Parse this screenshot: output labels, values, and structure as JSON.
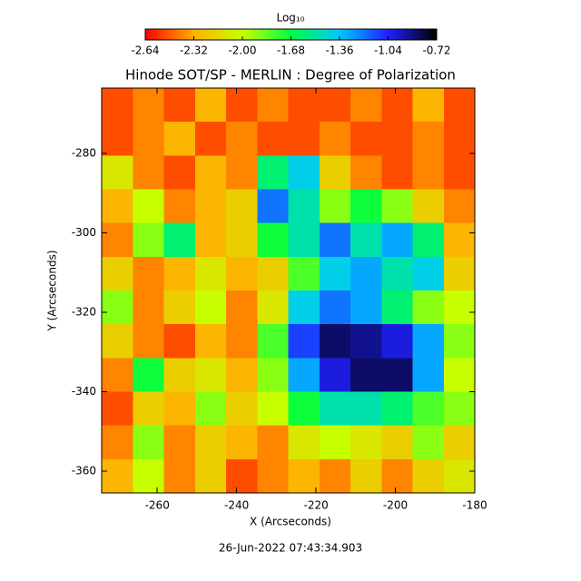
{
  "chart_data": {
    "type": "heatmap",
    "title": "Hinode SOT/SP - MERLIN : Degree of Polarization",
    "xlabel": "X (Arcseconds)",
    "ylabel": "Y (Arcseconds)",
    "footer": "26-Jun-2022 07:43:34.903",
    "colorbar_label": "Log₁₀",
    "xlim": [
      -274,
      -180
    ],
    "ylim": [
      -365.5,
      -263.5
    ],
    "xticks": [
      -260,
      -240,
      -220,
      -200,
      -180
    ],
    "yticks": [
      -280,
      -300,
      -320,
      -340,
      -360
    ],
    "clim": [
      -2.64,
      -0.72
    ],
    "cticks": [
      -2.64,
      -2.32,
      {
        "value": -2,
        "label": "-2.00"
      },
      -1.68,
      -1.36,
      -1.04,
      -0.72
    ],
    "colors": [
      "#ff0000",
      "#ffb000",
      "#c8ff00",
      "#00ff40",
      "#00c8ff",
      "#2020ff",
      "#000000"
    ],
    "z": [
      [
        -2.5,
        -2.4,
        -2.5,
        -2.3,
        -2.5,
        -2.4,
        -2.5,
        -2.5,
        -2.4,
        -2.5,
        -2.3,
        -2.5
      ],
      [
        -2.5,
        -2.4,
        -2.3,
        -2.5,
        -2.4,
        -2.5,
        -2.5,
        -2.4,
        -2.5,
        -2.5,
        -2.4,
        -2.5
      ],
      [
        -2.1,
        -2.4,
        -2.5,
        -2.3,
        -2.4,
        -1.6,
        -1.4,
        -2.2,
        -2.4,
        -2.5,
        -2.4,
        -2.5
      ],
      [
        -2.3,
        -2.0,
        -2.4,
        -2.3,
        -2.2,
        -1.2,
        -1.5,
        -1.9,
        -1.7,
        -1.9,
        -2.2,
        -2.4
      ],
      [
        -2.4,
        -1.9,
        -1.6,
        -2.3,
        -2.2,
        -1.7,
        -1.5,
        -1.2,
        -1.5,
        -1.3,
        -1.6,
        -2.3
      ],
      [
        -2.2,
        -2.4,
        -2.3,
        -2.1,
        -2.3,
        -2.2,
        -1.8,
        -1.4,
        -1.3,
        -1.5,
        -1.4,
        -2.2
      ],
      [
        -1.9,
        -2.4,
        -2.2,
        -2.0,
        -2.4,
        -2.1,
        -1.4,
        -1.2,
        -1.3,
        -1.6,
        -1.9,
        -2.0
      ],
      [
        -2.2,
        -2.4,
        -2.5,
        -2.3,
        -2.4,
        -1.8,
        -1.1,
        -0.85,
        -0.9,
        -1.0,
        -1.3,
        -1.9
      ],
      [
        -2.4,
        -1.7,
        -2.2,
        -2.1,
        -2.3,
        -1.9,
        -1.3,
        -1.0,
        -0.85,
        -0.85,
        -1.3,
        -2.0
      ],
      [
        -2.5,
        -2.2,
        -2.3,
        -1.9,
        -2.2,
        -2.0,
        -1.7,
        -1.5,
        -1.5,
        -1.6,
        -1.8,
        -1.9
      ],
      [
        -2.4,
        -1.9,
        -2.4,
        -2.2,
        -2.3,
        -2.4,
        -2.1,
        -2.0,
        -2.1,
        -2.2,
        -1.9,
        -2.2
      ],
      [
        -2.3,
        -2.0,
        -2.4,
        -2.2,
        -2.5,
        -2.4,
        -2.3,
        -2.4,
        -2.2,
        -2.4,
        -2.2,
        -2.1
      ]
    ]
  }
}
